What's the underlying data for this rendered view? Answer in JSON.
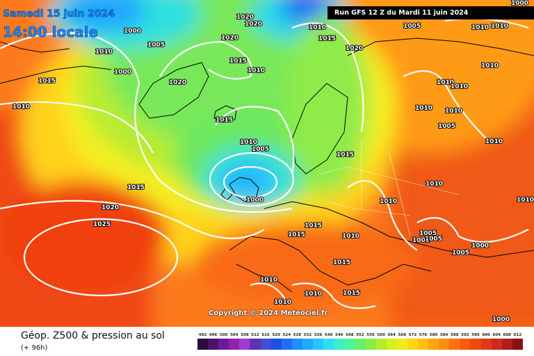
{
  "header": {
    "date_line": "Samedi 15 juin 2024",
    "time_line": "14:00 locale",
    "run_label": "Run GFS 12 Z du Mardi 11 juin 2024"
  },
  "copyright": "Copyright © 2024 Meteociel.fr",
  "footer": {
    "title": "Géop. Z500 & pression au sol",
    "forecast_step": "(+ 96h)"
  },
  "scale": {
    "ticks": [
      "492",
      "496",
      "500",
      "504",
      "508",
      "512",
      "516",
      "520",
      "524",
      "528",
      "532",
      "536",
      "540",
      "544",
      "548",
      "552",
      "556",
      "560",
      "564",
      "568",
      "572",
      "576",
      "580",
      "584",
      "588",
      "592",
      "596",
      "600",
      "604",
      "608",
      "612"
    ],
    "colors": [
      "#2b0a3d",
      "#4b136b",
      "#6a1b9a",
      "#8e24aa",
      "#a23ccf",
      "#5e35b1",
      "#3f51d4",
      "#1a50e6",
      "#1e6ff5",
      "#1e90ff",
      "#22aaff",
      "#26c6ff",
      "#2ce0f0",
      "#3af0c8",
      "#4cf59a",
      "#66f06a",
      "#8eeb48",
      "#b4ec2e",
      "#d8f020",
      "#f0ec1a",
      "#fdd617",
      "#ffbf14",
      "#ffa512",
      "#ff8c10",
      "#ff720e",
      "#f95c10",
      "#f04a12",
      "#e03818",
      "#cc2a1e",
      "#b11e20",
      "#8a1214"
    ]
  },
  "pressure_labels": [
    "1000",
    "1005",
    "1010",
    "1015",
    "1020",
    "1025",
    "1001"
  ]
}
